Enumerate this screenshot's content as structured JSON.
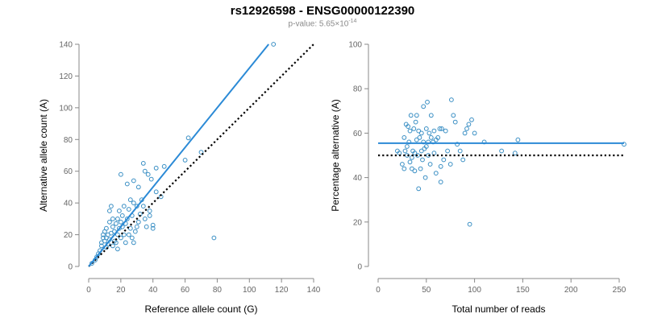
{
  "title": "rs12926598 - ENSG00000122390",
  "subtitle": {
    "prefix": "p-value: 5.65×10",
    "exponent": "-14"
  },
  "colors": {
    "points": "#3a8fc4",
    "fit": "#2b8ad6",
    "reference": "#000000",
    "axis": "#888888",
    "tick_label": "#666666"
  },
  "chart_data": [
    {
      "type": "scatter",
      "xlabel": "Reference allele count (G)",
      "ylabel": "Alternative allele count (A)",
      "xlim": [
        0,
        140
      ],
      "ylim": [
        0,
        140
      ],
      "xticks": [
        0,
        20,
        40,
        60,
        80,
        100,
        120,
        140
      ],
      "yticks": [
        0,
        20,
        40,
        60,
        80,
        100,
        120,
        140
      ],
      "grid": false,
      "fit_line": {
        "x": [
          0,
          112
        ],
        "y": [
          0,
          140
        ]
      },
      "reference_line": {
        "x": [
          0,
          140
        ],
        "y": [
          0,
          140
        ]
      },
      "points": [
        [
          2,
          2
        ],
        [
          4,
          4
        ],
        [
          5,
          6
        ],
        [
          6,
          8
        ],
        [
          7,
          10
        ],
        [
          8,
          13
        ],
        [
          8,
          15
        ],
        [
          9,
          18
        ],
        [
          9,
          20
        ],
        [
          10,
          22
        ],
        [
          10,
          16
        ],
        [
          11,
          12
        ],
        [
          11,
          18
        ],
        [
          11,
          24
        ],
        [
          12,
          20
        ],
        [
          12,
          14
        ],
        [
          13,
          17
        ],
        [
          13,
          28
        ],
        [
          13,
          35
        ],
        [
          14,
          21
        ],
        [
          14,
          38
        ],
        [
          15,
          30
        ],
        [
          15,
          25
        ],
        [
          15,
          13
        ],
        [
          16,
          16
        ],
        [
          16,
          22
        ],
        [
          17,
          27
        ],
        [
          17,
          15
        ],
        [
          18,
          30
        ],
        [
          18,
          20
        ],
        [
          18,
          11
        ],
        [
          19,
          24
        ],
        [
          19,
          35
        ],
        [
          20,
          28
        ],
        [
          20,
          58
        ],
        [
          20,
          18
        ],
        [
          21,
          25
        ],
        [
          21,
          32
        ],
        [
          22,
          38
        ],
        [
          22,
          20
        ],
        [
          23,
          27
        ],
        [
          23,
          15
        ],
        [
          24,
          30
        ],
        [
          24,
          52
        ],
        [
          25,
          20
        ],
        [
          25,
          36
        ],
        [
          26,
          42
        ],
        [
          26,
          24
        ],
        [
          27,
          32
        ],
        [
          27,
          18
        ],
        [
          28,
          40
        ],
        [
          28,
          54
        ],
        [
          28,
          15
        ],
        [
          29,
          22
        ],
        [
          30,
          38
        ],
        [
          30,
          25
        ],
        [
          31,
          28
        ],
        [
          31,
          50
        ],
        [
          32,
          33
        ],
        [
          33,
          42
        ],
        [
          34,
          65
        ],
        [
          34,
          38
        ],
        [
          35,
          60
        ],
        [
          35,
          30
        ],
        [
          36,
          25
        ],
        [
          37,
          58
        ],
        [
          38,
          35
        ],
        [
          38,
          32
        ],
        [
          39,
          55
        ],
        [
          40,
          26
        ],
        [
          40,
          24
        ],
        [
          42,
          62
        ],
        [
          42,
          47
        ],
        [
          45,
          44
        ],
        [
          47,
          63
        ],
        [
          60,
          67
        ],
        [
          62,
          81
        ],
        [
          70,
          72
        ],
        [
          78,
          18
        ],
        [
          115,
          140
        ]
      ]
    },
    {
      "type": "scatter",
      "xlabel": "Total number of reads",
      "ylabel": "Percentage alternative (A)",
      "xlim": [
        0,
        250
      ],
      "ylim": [
        0,
        100
      ],
      "xticks": [
        0,
        50,
        100,
        150,
        200,
        250
      ],
      "yticks": [
        0,
        20,
        40,
        60,
        80,
        100
      ],
      "grid": false,
      "fit_line": {
        "x": [
          0,
          255
        ],
        "y": [
          55.5,
          55.5
        ]
      },
      "reference_line": {
        "x": [
          0,
          255
        ],
        "y": [
          50,
          50
        ]
      },
      "points": [
        [
          20,
          52
        ],
        [
          22,
          51
        ],
        [
          25,
          46
        ],
        [
          27,
          44
        ],
        [
          27,
          58
        ],
        [
          28,
          52
        ],
        [
          29,
          64
        ],
        [
          30,
          50
        ],
        [
          30,
          54
        ],
        [
          31,
          63
        ],
        [
          32,
          56
        ],
        [
          33,
          61
        ],
        [
          33,
          47
        ],
        [
          34,
          68
        ],
        [
          35,
          44
        ],
        [
          35,
          49
        ],
        [
          36,
          52
        ],
        [
          37,
          62
        ],
        [
          38,
          51
        ],
        [
          38,
          43
        ],
        [
          39,
          65
        ],
        [
          40,
          57
        ],
        [
          40,
          68
        ],
        [
          41,
          50
        ],
        [
          42,
          35
        ],
        [
          42,
          61
        ],
        [
          43,
          58
        ],
        [
          44,
          44
        ],
        [
          45,
          60
        ],
        [
          45,
          52
        ],
        [
          46,
          48
        ],
        [
          47,
          72
        ],
        [
          47,
          56
        ],
        [
          48,
          53
        ],
        [
          49,
          40
        ],
        [
          50,
          62
        ],
        [
          50,
          54
        ],
        [
          51,
          74
        ],
        [
          52,
          56
        ],
        [
          52,
          50
        ],
        [
          53,
          60
        ],
        [
          54,
          46
        ],
        [
          55,
          58
        ],
        [
          55,
          68
        ],
        [
          57,
          56
        ],
        [
          58,
          61
        ],
        [
          58,
          51
        ],
        [
          60,
          42
        ],
        [
          60,
          57
        ],
        [
          62,
          58
        ],
        [
          64,
          62
        ],
        [
          65,
          38
        ],
        [
          65,
          45
        ],
        [
          66,
          62
        ],
        [
          68,
          48
        ],
        [
          70,
          61
        ],
        [
          72,
          52
        ],
        [
          75,
          46
        ],
        [
          76,
          75
        ],
        [
          78,
          68
        ],
        [
          80,
          65
        ],
        [
          82,
          55
        ],
        [
          85,
          52
        ],
        [
          88,
          48
        ],
        [
          90,
          60
        ],
        [
          92,
          62
        ],
        [
          94,
          64
        ],
        [
          95,
          19
        ],
        [
          97,
          66
        ],
        [
          100,
          60
        ],
        [
          110,
          56
        ],
        [
          128,
          52
        ],
        [
          142,
          51
        ],
        [
          145,
          57
        ],
        [
          255,
          55
        ]
      ]
    }
  ]
}
